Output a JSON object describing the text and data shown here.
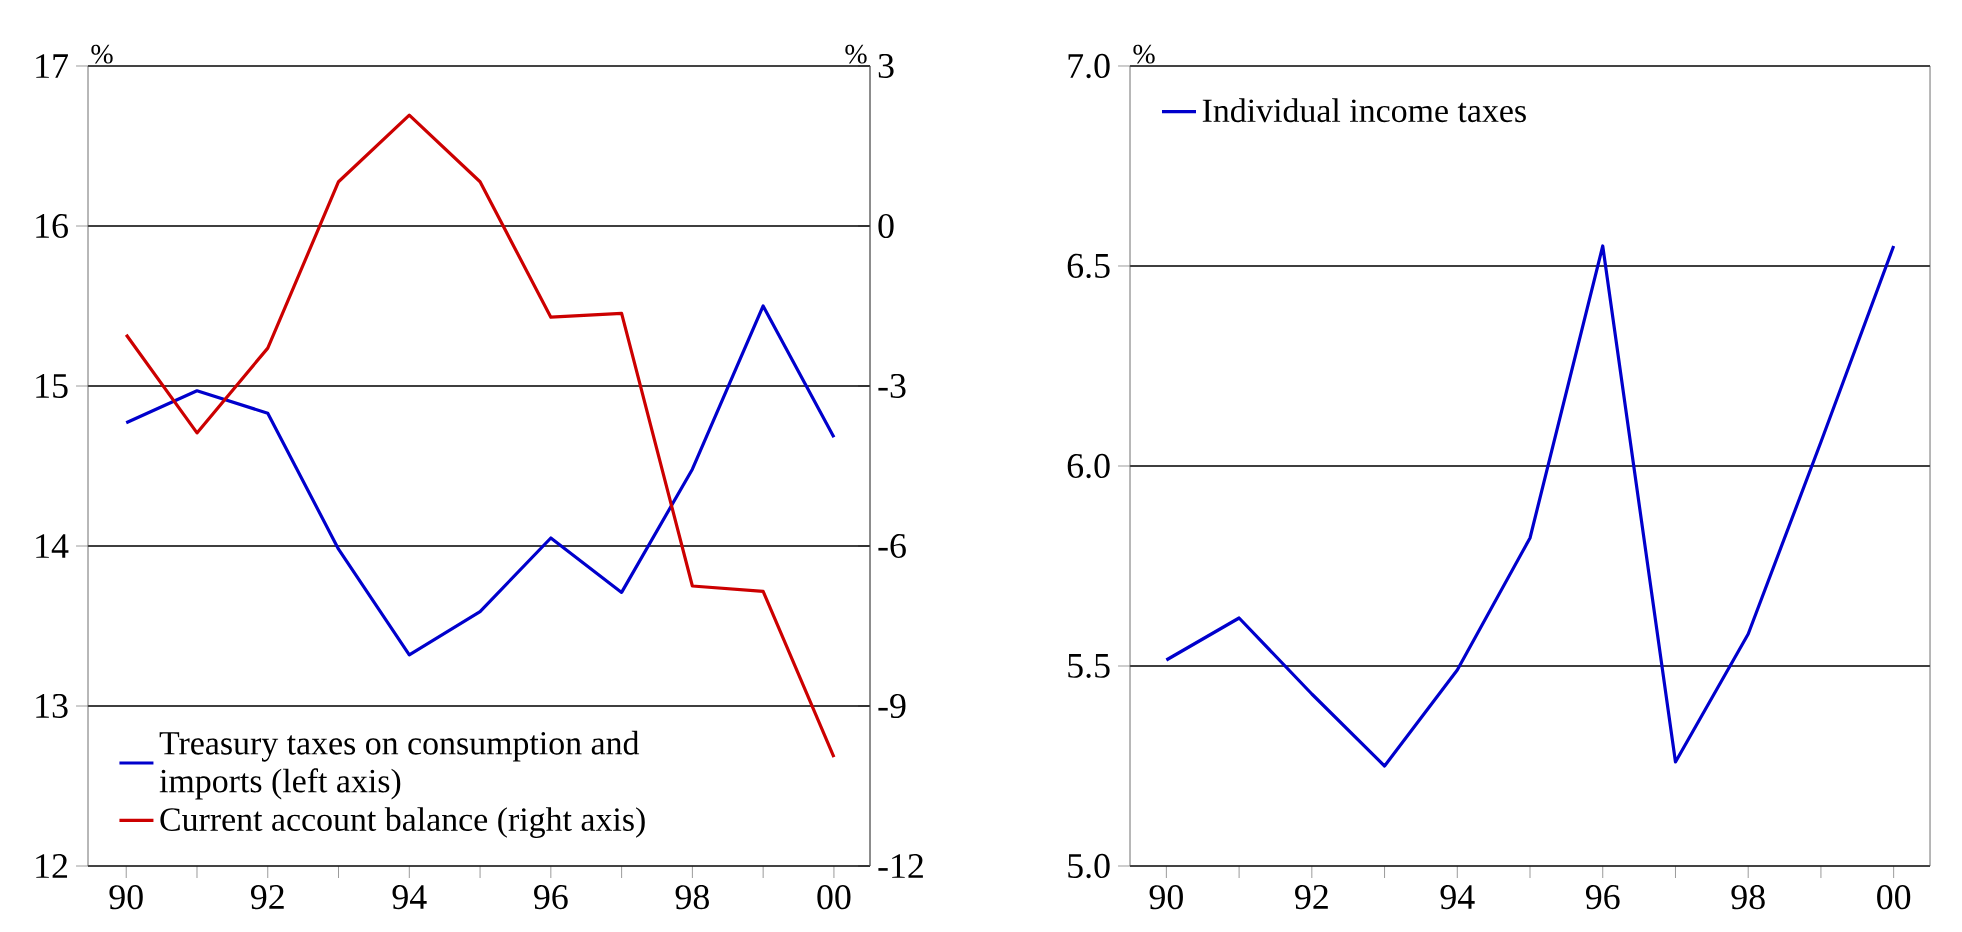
{
  "chart_data": [
    {
      "type": "line",
      "x": [
        1990,
        1991,
        1992,
        1993,
        1994,
        1995,
        1996,
        1997,
        1998,
        1999,
        2000
      ],
      "xlim": [
        1989.46,
        2000.51
      ],
      "xticks": [
        {
          "value": 1990,
          "label": "90"
        },
        {
          "value": 1991,
          "label": null
        },
        {
          "value": 1992,
          "label": "92"
        },
        {
          "value": 1993,
          "label": null
        },
        {
          "value": 1994,
          "label": "94"
        },
        {
          "value": 1995,
          "label": null
        },
        {
          "value": 1996,
          "label": "96"
        },
        {
          "value": 1997,
          "label": null
        },
        {
          "value": 1998,
          "label": "98"
        },
        {
          "value": 1999,
          "label": null
        },
        {
          "value": 2000,
          "label": "00"
        }
      ],
      "ylabel": "%",
      "y2label": "%",
      "ylim": [
        12,
        17
      ],
      "yticks": [
        12,
        13,
        14,
        15,
        16,
        17
      ],
      "y2lim": [
        -12,
        3
      ],
      "y2ticks": [
        -12,
        -9,
        -6,
        -3,
        0,
        3
      ],
      "grid": "y",
      "legend": "bottom left",
      "series": [
        {
          "name": "Treasury taxes on consumption and imports (left axis)",
          "color": "#0000cc",
          "values": [
            14.77,
            14.97,
            14.83,
            13.98,
            13.32,
            13.59,
            14.05,
            13.71,
            14.48,
            15.5,
            14.68
          ]
        },
        {
          "name": "Current account balance (right axis)",
          "color": "#cc0000",
          "axis": "y2",
          "values": [
            -2.04,
            -3.88,
            -2.29,
            0.83,
            2.08,
            0.83,
            -1.71,
            -1.64,
            -6.75,
            -6.85,
            -9.96
          ]
        }
      ]
    },
    {
      "type": "line",
      "x": [
        1990,
        1991,
        1992,
        1993,
        1994,
        1995,
        1996,
        1997,
        1998,
        1999,
        2000
      ],
      "xlim": [
        1989.5,
        2000.5
      ],
      "xticks": [
        {
          "value": 1990,
          "label": "90"
        },
        {
          "value": 1991,
          "label": null
        },
        {
          "value": 1992,
          "label": "92"
        },
        {
          "value": 1993,
          "label": null
        },
        {
          "value": 1994,
          "label": "94"
        },
        {
          "value": 1995,
          "label": null
        },
        {
          "value": 1996,
          "label": "96"
        },
        {
          "value": 1997,
          "label": null
        },
        {
          "value": 1998,
          "label": "98"
        },
        {
          "value": 1999,
          "label": null
        },
        {
          "value": 2000,
          "label": "00"
        }
      ],
      "ylabel": "%",
      "ylim": [
        5.0,
        7.0
      ],
      "yticks": [
        {
          "value": 5.0,
          "label": "5.0"
        },
        {
          "value": 5.5,
          "label": "5.5"
        },
        {
          "value": 6.0,
          "label": "6.0"
        },
        {
          "value": 6.5,
          "label": "6.5"
        },
        {
          "value": 7.0,
          "label": "7.0"
        }
      ],
      "grid": "y",
      "legend": "top left",
      "series": [
        {
          "name": "Individual income taxes",
          "color": "#0000cc",
          "values": [
            5.515,
            5.62,
            5.43,
            5.25,
            5.49,
            5.82,
            6.55,
            5.26,
            5.58,
            6.06,
            6.55
          ]
        }
      ]
    }
  ]
}
